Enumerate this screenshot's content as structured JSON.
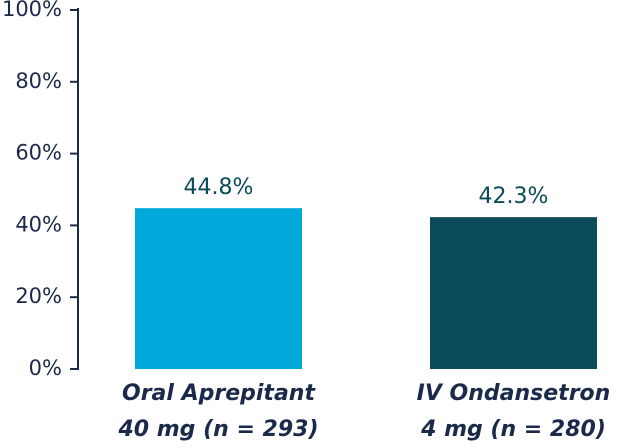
{
  "chart_data": {
    "type": "bar",
    "categories": [
      "Oral Aprepitant\n40 mg (n = 293)",
      "IV Ondansetron\n4 mg (n = 280)"
    ],
    "values": [
      44.8,
      42.3
    ],
    "value_labels": [
      "44.8%",
      "42.3%"
    ],
    "colors": [
      "#00a9d9",
      "#0b4a59"
    ],
    "ylim": [
      0,
      100
    ],
    "yticks": [
      {
        "value": 0,
        "label": "0%"
      },
      {
        "value": 20,
        "label": "20%"
      },
      {
        "value": 40,
        "label": "40%"
      },
      {
        "value": 60,
        "label": "60%"
      },
      {
        "value": 80,
        "label": "80%"
      },
      {
        "value": 100,
        "label": "100%"
      }
    ],
    "grid": false
  }
}
